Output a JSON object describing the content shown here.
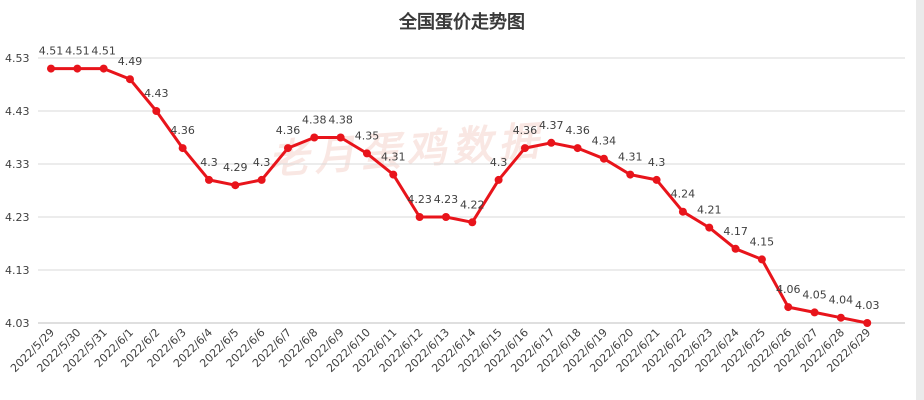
{
  "chart_data": {
    "type": "line",
    "title": "全国蛋价走势图",
    "xlabel": "",
    "ylabel": "",
    "ylim": [
      4.03,
      4.53
    ],
    "yticks": [
      "4.53",
      "4.43",
      "4.33",
      "4.23",
      "4.13",
      "4.03"
    ],
    "grid": true,
    "legend": "none",
    "categories": [
      "2022/5/29",
      "2022/5/30",
      "2022/5/31",
      "2022/6/1",
      "2022/6/2",
      "2022/6/3",
      "2022/6/4",
      "2022/6/5",
      "2022/6/6",
      "2022/6/7",
      "2022/6/8",
      "2022/6/9",
      "2022/6/10",
      "2022/6/11",
      "2022/6/12",
      "2022/6/13",
      "2022/6/14",
      "2022/6/15",
      "2022/6/16",
      "2022/6/17",
      "2022/6/18",
      "2022/6/19",
      "2022/6/20",
      "2022/6/21",
      "2022/6/22",
      "2022/6/23",
      "2022/6/24",
      "2022/6/25",
      "2022/6/26",
      "2022/6/27",
      "2022/6/28",
      "2022/6/29"
    ],
    "series": [
      {
        "values": [
          4.51,
          4.51,
          4.51,
          4.49,
          4.43,
          4.36,
          4.3,
          4.29,
          4.3,
          4.36,
          4.38,
          4.38,
          4.35,
          4.31,
          4.23,
          4.23,
          4.22,
          4.3,
          4.36,
          4.37,
          4.36,
          4.34,
          4.31,
          4.3,
          4.24,
          4.21,
          4.17,
          4.15,
          4.06,
          4.05,
          4.04,
          4.03
        ]
      }
    ],
    "line_color": "#e8141b",
    "watermark": "老月蛋鸡数据"
  }
}
